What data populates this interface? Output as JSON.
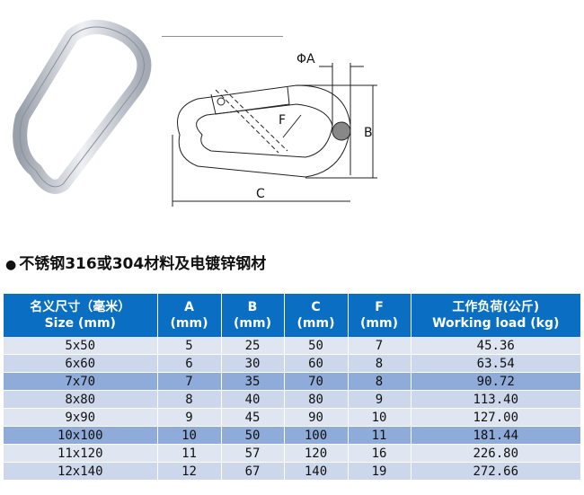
{
  "drawing": {
    "labels": {
      "a": "ΦA",
      "b": "B",
      "c": "C",
      "f": "F"
    }
  },
  "note": "不锈钢316或304材料及电镀锌钢材",
  "table": {
    "headers": [
      {
        "cn": "名义尺寸（毫米）",
        "en": "Size (mm)"
      },
      {
        "cn": "A",
        "en": "(mm)"
      },
      {
        "cn": "B",
        "en": "(mm)"
      },
      {
        "cn": "C",
        "en": "(mm)"
      },
      {
        "cn": "F",
        "en": "(mm)"
      },
      {
        "cn": "工作负荷(公斤)",
        "en": "Working load (kg)"
      }
    ],
    "rows": [
      [
        "5x50",
        "5",
        "25",
        "50",
        "7",
        "45.36"
      ],
      [
        "6x60",
        "6",
        "30",
        "60",
        "8",
        "63.54"
      ],
      [
        "7x70",
        "7",
        "35",
        "70",
        "8",
        "90.72"
      ],
      [
        "8x80",
        "8",
        "40",
        "80",
        "9",
        "113.40"
      ],
      [
        "9x90",
        "9",
        "45",
        "90",
        "10",
        "127.00"
      ],
      [
        "10x100",
        "10",
        "50",
        "100",
        "11",
        "181.44"
      ],
      [
        "11x120",
        "11",
        "57",
        "120",
        "16",
        "226.80"
      ],
      [
        "12x140",
        "12",
        "67",
        "140",
        "19",
        "272.66"
      ]
    ],
    "highlighted_rows": [
      2,
      5
    ],
    "colors": {
      "header": "#0a6fc2",
      "row_light": "#dfe5f1",
      "row_alt": "#ccd7ec",
      "row_highlight": "#8eabd9"
    }
  }
}
